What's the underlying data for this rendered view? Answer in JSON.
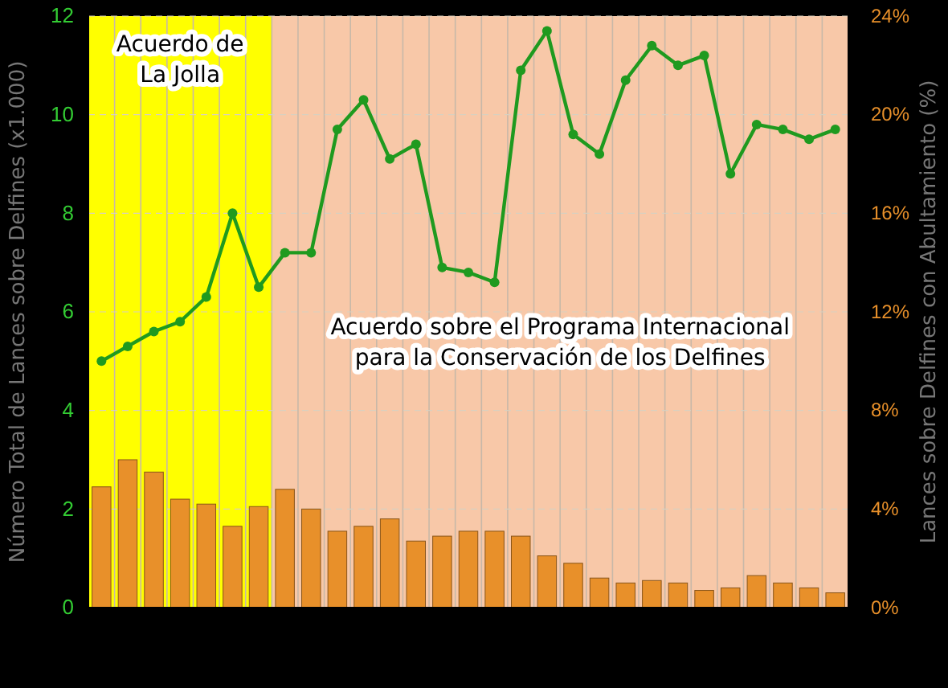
{
  "chart_data": {
    "type": "bar",
    "ylabel": "Número Total de Lances sobre Delfines (x1.000)",
    "y2label": "Lances sobre Delfines con Abultamiento (%)",
    "categories": [
      null,
      null,
      null,
      null,
      null,
      null,
      null,
      null,
      null,
      null,
      null,
      null,
      null,
      null,
      null,
      null,
      null,
      null,
      null,
      null,
      null,
      null,
      null,
      null,
      null,
      null,
      null,
      null,
      null
    ],
    "series": [
      {
        "axis": "y2",
        "color": "#e8902a",
        "values": [
          4.9,
          6.0,
          5.5,
          4.4,
          4.2,
          3.3,
          4.1,
          4.8,
          4.0,
          3.1,
          3.3,
          3.6,
          2.7,
          2.9,
          3.1,
          3.1,
          2.9,
          2.1,
          1.8,
          1.2,
          1.0,
          1.1,
          1.0,
          0.7,
          0.8,
          1.3,
          1.0,
          0.8,
          0.6
        ]
      },
      {
        "type": "line",
        "color": "#1f9a1f",
        "marker": "circle",
        "values": [
          5.0,
          5.3,
          5.6,
          5.8,
          6.3,
          8.0,
          6.5,
          7.2,
          7.2,
          9.7,
          10.3,
          9.1,
          9.4,
          6.9,
          6.8,
          6.6,
          10.9,
          11.7,
          9.6,
          9.2,
          10.7,
          11.4,
          11.0,
          11.2,
          8.8,
          9.8,
          9.7,
          9.5,
          9.7
        ]
      }
    ],
    "ylim": [
      0,
      12
    ],
    "yticks": [
      0,
      2,
      4,
      6,
      8,
      10,
      12
    ],
    "y2lim": [
      0,
      24
    ],
    "y2ticks": [
      {
        "value": 0,
        "label": "0%"
      },
      {
        "value": 4,
        "label": "4%"
      },
      {
        "value": 8,
        "label": "8%"
      },
      {
        "value": 12,
        "label": "12%"
      },
      {
        "value": 16,
        "label": "16%"
      },
      {
        "value": 20,
        "label": "20%"
      },
      {
        "value": 24,
        "label": "24%"
      }
    ],
    "annotations": [
      "Acuerdo de\nLa Jolla",
      "Acuerdo sobre el Programa Internacional\npara la Conservación de los Delfines"
    ],
    "grid": true
  }
}
